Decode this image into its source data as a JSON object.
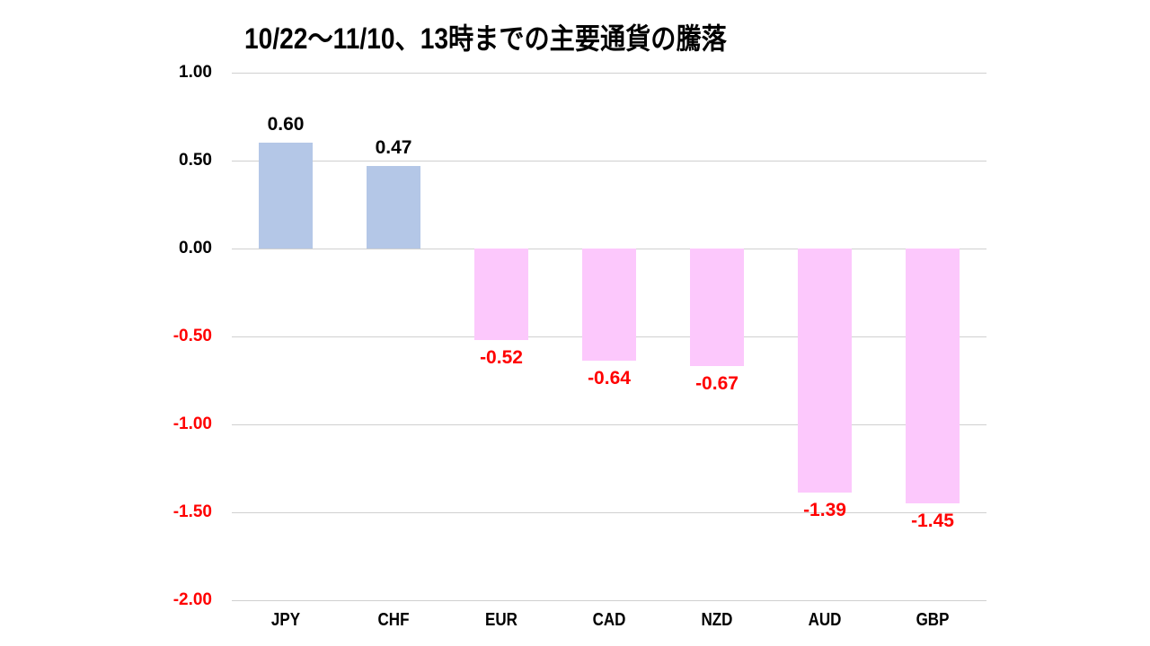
{
  "title": "10/22～11/10、13時までの主要通貨の騰落",
  "colors": {
    "positive_bar": "#b4c7e7",
    "negative_bar": "#fcc8fc",
    "positive_label": "#000000",
    "negative_label": "#ff0000",
    "grid": "#d0d0d0"
  },
  "chart_data": {
    "type": "bar",
    "title": "10/22～11/10、13時までの主要通貨の騰落",
    "xlabel": "",
    "ylabel": "",
    "categories": [
      "JPY",
      "CHF",
      "EUR",
      "CAD",
      "NZD",
      "AUD",
      "GBP"
    ],
    "values": [
      0.6,
      0.47,
      -0.52,
      -0.64,
      -0.67,
      -1.39,
      -1.45
    ],
    "value_labels": [
      "0.60",
      "0.47",
      "-0.52",
      "-0.64",
      "-0.67",
      "-1.39",
      "-1.45"
    ],
    "ylim": [
      -2.0,
      1.0
    ],
    "yticks": [
      1.0,
      0.5,
      0.0,
      -0.5,
      -1.0,
      -1.5,
      -2.0
    ],
    "ytick_labels": [
      "1.00",
      "0.50",
      "0.00",
      "-0.50",
      "-1.00",
      "-1.50",
      "-2.00"
    ],
    "grid": true,
    "legend": null
  }
}
